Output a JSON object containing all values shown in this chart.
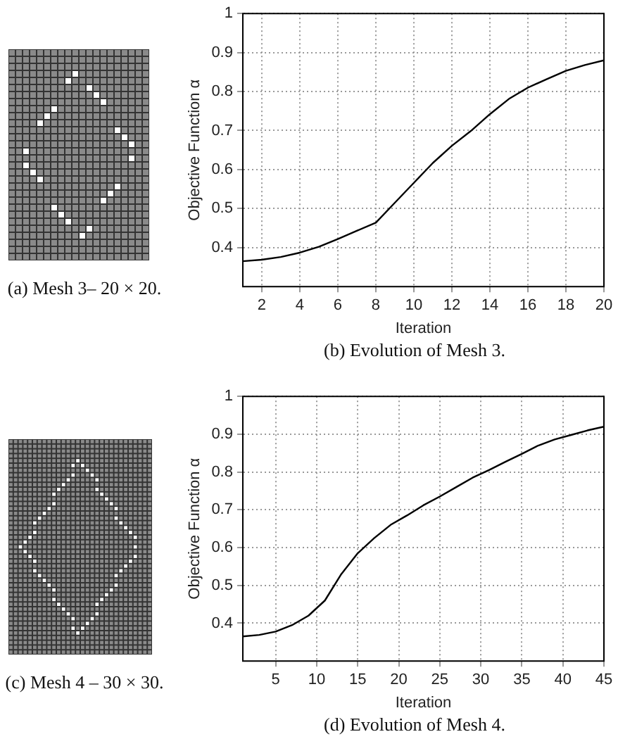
{
  "chart_data": [
    {
      "type": "line",
      "xlabel": "Iteration",
      "ylabel": "Objective Function α",
      "x": [
        1,
        2,
        3,
        4,
        5,
        6,
        7,
        8,
        9,
        10,
        11,
        12,
        13,
        14,
        15,
        16,
        17,
        18,
        19,
        20
      ],
      "series": [
        {
          "color": "#000000",
          "values": [
            0.365,
            0.369,
            0.376,
            0.387,
            0.402,
            0.422,
            0.443,
            0.464,
            0.515,
            0.566,
            0.617,
            0.661,
            0.699,
            0.742,
            0.781,
            0.81,
            0.832,
            0.853,
            0.868,
            0.88
          ]
        }
      ],
      "xlim": [
        1,
        20
      ],
      "xticks": [
        2,
        4,
        6,
        8,
        10,
        12,
        14,
        16,
        18,
        20
      ],
      "ylim": [
        0.3,
        1
      ],
      "yticks": [
        0.4,
        0.5,
        0.6,
        0.7,
        0.8,
        0.9,
        1
      ],
      "grid": true,
      "legend": false,
      "marker": "none",
      "line_style": "solid",
      "annotations": [
        "(a) Mesh 3– 20 × 20.",
        "(b) Evolution of Mesh 3."
      ]
    },
    {
      "type": "line",
      "xlabel": "Iteration",
      "ylabel": "Objective Function α",
      "x": [
        1,
        3,
        5,
        7,
        9,
        11,
        13,
        15,
        17,
        19,
        21,
        23,
        25,
        27,
        29,
        31,
        33,
        35,
        37,
        39,
        41,
        43,
        45
      ],
      "series": [
        {
          "color": "#000000",
          "values": [
            0.365,
            0.369,
            0.378,
            0.395,
            0.42,
            0.46,
            0.53,
            0.585,
            0.625,
            0.66,
            0.685,
            0.712,
            0.735,
            0.76,
            0.785,
            0.805,
            0.827,
            0.848,
            0.87,
            0.886,
            0.898,
            0.91,
            0.92
          ]
        }
      ],
      "xlim": [
        1,
        45
      ],
      "xticks": [
        5,
        10,
        15,
        20,
        25,
        30,
        35,
        40,
        45
      ],
      "ylim": [
        0.3,
        1
      ],
      "yticks": [
        0.4,
        0.5,
        0.6,
        0.7,
        0.8,
        0.9,
        1
      ],
      "grid": true,
      "legend": false,
      "marker": "none",
      "line_style": "solid",
      "annotations": [
        "(c) Mesh 4 – 30 × 30.",
        "(d) Evolution of Mesh 4."
      ]
    }
  ]
}
